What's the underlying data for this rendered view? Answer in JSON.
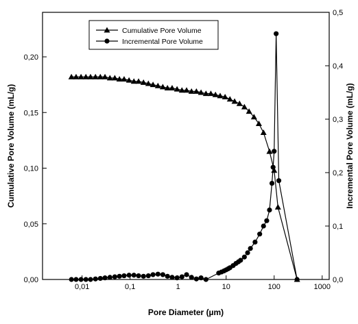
{
  "chart_data": {
    "type": "line",
    "x_label": "Pore Diameter  (µm)",
    "y_label": "Cumulative Pore Volume  (mL/g)",
    "y2_label": "Incremental Pore Volume  (mL/g)",
    "x_log": true,
    "xlim": [
      0.0015,
      1400
    ],
    "xticks": [
      {
        "value": 0.01,
        "label": "0,01"
      },
      {
        "value": 0.1,
        "label": "0,1"
      },
      1,
      10,
      100,
      1000
    ],
    "ylim": [
      0,
      0.24
    ],
    "yticks": [
      {
        "value": 0,
        "label": "0,00"
      },
      {
        "value": 0.05,
        "label": "0,05"
      },
      {
        "value": 0.1,
        "label": "0,10"
      },
      {
        "value": 0.15,
        "label": "0,15"
      },
      {
        "value": 0.2,
        "label": "0,20"
      }
    ],
    "y2lim": [
      0,
      0.5
    ],
    "y2ticks": [
      {
        "value": 0,
        "label": "0,0"
      },
      {
        "value": 0.1,
        "label": "0,1"
      },
      {
        "value": 0.2,
        "label": "0,2"
      },
      {
        "value": 0.3,
        "label": "0,3"
      },
      {
        "value": 0.4,
        "label": "0,4"
      },
      {
        "value": 0.5,
        "label": "0,5"
      }
    ],
    "series": [
      {
        "name": "Cumulative Pore Volume",
        "color": "#000000",
        "marker": "triangle",
        "x": [
          0.006,
          0.0075,
          0.0095,
          0.012,
          0.015,
          0.019,
          0.024,
          0.03,
          0.038,
          0.048,
          0.06,
          0.075,
          0.095,
          0.12,
          0.15,
          0.19,
          0.24,
          0.3,
          0.38,
          0.48,
          0.6,
          0.75,
          0.95,
          1.2,
          1.5,
          1.9,
          2.4,
          3,
          3.8,
          4.8,
          6,
          7.5,
          9.5,
          12,
          15,
          19,
          24,
          30,
          38,
          48,
          60,
          80,
          100,
          120,
          300
        ],
        "values": [
          0.182,
          0.182,
          0.182,
          0.182,
          0.182,
          0.182,
          0.182,
          0.182,
          0.181,
          0.181,
          0.18,
          0.18,
          0.179,
          0.178,
          0.178,
          0.177,
          0.176,
          0.175,
          0.174,
          0.173,
          0.172,
          0.172,
          0.171,
          0.17,
          0.17,
          0.169,
          0.169,
          0.168,
          0.167,
          0.167,
          0.166,
          0.165,
          0.164,
          0.162,
          0.16,
          0.158,
          0.155,
          0.151,
          0.146,
          0.14,
          0.132,
          0.115,
          0.098,
          0.065,
          0
        ]
      },
      {
        "name": "Incremental Pore Volume",
        "color": "#000000",
        "marker": "circle",
        "axis": "y2",
        "x": [
          0.006,
          0.0075,
          0.0095,
          0.012,
          0.015,
          0.019,
          0.024,
          0.03,
          0.038,
          0.048,
          0.06,
          0.075,
          0.095,
          0.12,
          0.15,
          0.19,
          0.24,
          0.3,
          0.38,
          0.48,
          0.6,
          0.75,
          0.95,
          1.2,
          1.5,
          1.9,
          2.4,
          3,
          3.8,
          7,
          8,
          9,
          10,
          11,
          12,
          14,
          16,
          18,
          20,
          24,
          28,
          32,
          40,
          50,
          60,
          70,
          80,
          90,
          95,
          100,
          110,
          125,
          300
        ],
        "values": [
          0,
          0,
          0,
          0,
          0,
          0.001,
          0.002,
          0.003,
          0.004,
          0.005,
          0.006,
          0.007,
          0.008,
          0.008,
          0.007,
          0.006,
          0.007,
          0.009,
          0.01,
          0.009,
          0.006,
          0.004,
          0.003,
          0.005,
          0.009,
          0.004,
          0.001,
          0.003,
          0,
          0.012,
          0.014,
          0.016,
          0.018,
          0.02,
          0.022,
          0.026,
          0.03,
          0.033,
          0.036,
          0.042,
          0.05,
          0.058,
          0.07,
          0.085,
          0.1,
          0.11,
          0.13,
          0.18,
          0.21,
          0.24,
          0.46,
          0.185,
          0
        ]
      }
    ]
  }
}
